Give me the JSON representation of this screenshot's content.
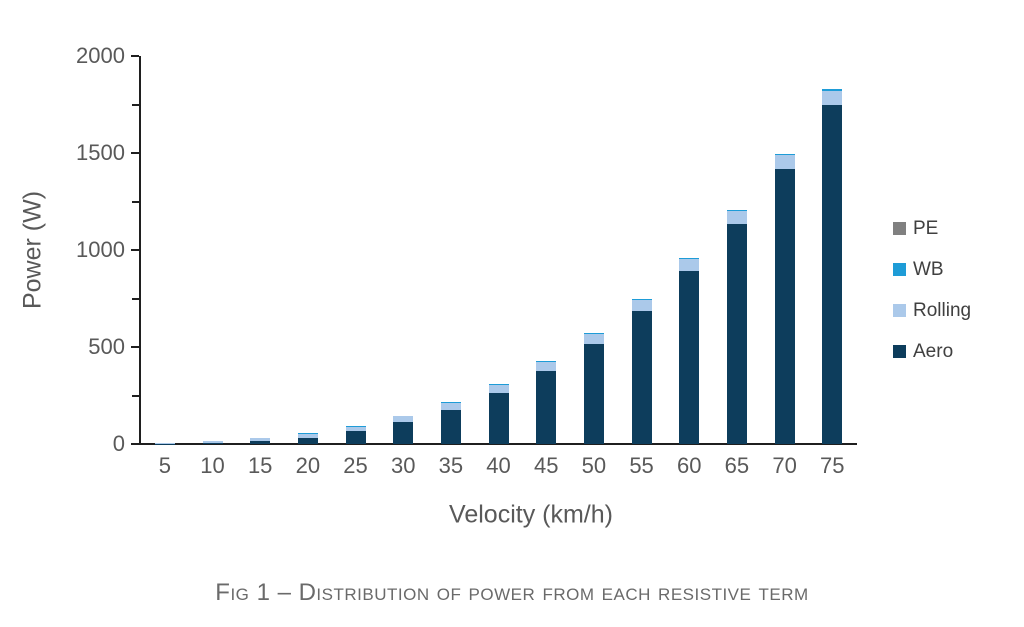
{
  "figure": {
    "caption": "Fig 1 – Distribution of power from each resistive term"
  },
  "chart_data": {
    "type": "bar",
    "stacked": true,
    "title": "",
    "xlabel": "Velocity (km/h)",
    "ylabel": "Power (W)",
    "ylim": [
      0,
      2000
    ],
    "yticks": [
      0,
      500,
      1000,
      1500,
      2000
    ],
    "yticks_minor": [
      250,
      750,
      1250,
      1750
    ],
    "grid": false,
    "legend_position": "right",
    "categories": [
      "5",
      "10",
      "15",
      "20",
      "25",
      "30",
      "35",
      "40",
      "45",
      "50",
      "55",
      "60",
      "65",
      "70",
      "75"
    ],
    "series": [
      {
        "name": "PE",
        "color": "#808080",
        "values": [
          0,
          0,
          0,
          0,
          0,
          0,
          0,
          0,
          0,
          0,
          0,
          0,
          0,
          0,
          0
        ]
      },
      {
        "name": "WB",
        "color": "#1e9cd7",
        "values": [
          1,
          1,
          2,
          2,
          3,
          3,
          4,
          4,
          5,
          6,
          6,
          7,
          7,
          8,
          8
        ]
      },
      {
        "name": "Rolling",
        "color": "#abc9ea",
        "values": [
          5,
          10,
          15,
          20,
          25,
          30,
          35,
          40,
          45,
          50,
          55,
          60,
          65,
          70,
          75
        ]
      },
      {
        "name": "Aero",
        "color": "#0d3d5c",
        "values": [
          1,
          4,
          14,
          33,
          65,
          112,
          177,
          265,
          377,
          517,
          688,
          894,
          1136,
          1419,
          1745
        ]
      }
    ],
    "stack_order_bottom_to_top": [
      "Aero",
      "Rolling",
      "WB",
      "PE"
    ],
    "legend_order_top_to_bottom": [
      "PE",
      "WB",
      "Rolling",
      "Aero"
    ]
  },
  "style": {
    "background": "#ffffff",
    "axis_color": "#1f1f1f",
    "tick_label_color": "#595959",
    "axis_title_color": "#595959",
    "legend_text_color": "#404040",
    "caption_color": "#6a6a6a"
  }
}
